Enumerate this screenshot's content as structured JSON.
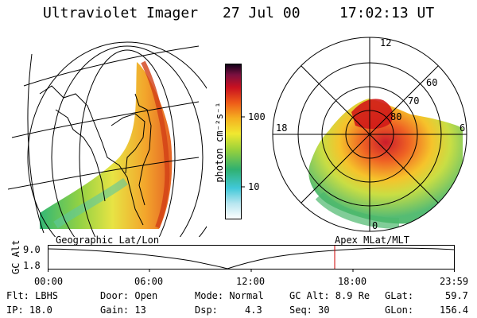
{
  "header": {
    "instrument": "Ultraviolet Imager",
    "date": "27 Jul 00",
    "time": "17:02:13 UT"
  },
  "colorbar": {
    "unit_label": "photon cm⁻²s⁻¹",
    "ticks": [
      "100",
      "10"
    ]
  },
  "polar": {
    "mlt_labels": [
      "12",
      "18",
      "6",
      "0"
    ],
    "lat_labels": [
      "60",
      "70",
      "80"
    ]
  },
  "timeline": {
    "left_label": "Geographic Lat/Lon",
    "right_label": "Apex MLat/MLT",
    "yaxis_label": "GC Alt",
    "y_max": "9.0",
    "y_min": "1.8",
    "x_ticks": [
      "00:00",
      "06:00",
      "12:00",
      "18:00",
      "23:59"
    ],
    "marker_color": "#cc0000"
  },
  "status": {
    "flt": "Flt: LBHS",
    "ip": "IP: 18.0",
    "door": "Door: Open",
    "gain": "Gain: 13",
    "mode": "Mode: Normal",
    "dsp_label": "Dsp:",
    "dsp_value": "4.3",
    "gc_alt": "GC Alt: 8.9 Re",
    "seq": "Seq: 30",
    "glat_label": "GLat:",
    "glat_value": "59.7",
    "glon_label": "GLon:",
    "glon_value": "156.4"
  }
}
